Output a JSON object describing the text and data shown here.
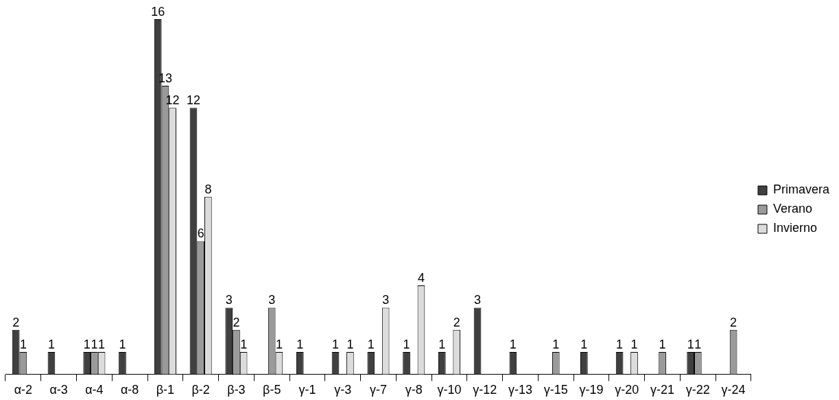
{
  "chart_data": {
    "type": "bar",
    "categories": [
      "α-2",
      "α-3",
      "α-4",
      "α-8",
      "β-1",
      "β-2",
      "β-3",
      "β-5",
      "γ-1",
      "γ-3",
      "γ-7",
      "γ-8",
      "γ-10",
      "γ-12",
      "γ-13",
      "γ-15",
      "γ-19",
      "γ-20",
      "γ-21",
      "γ-22",
      "γ-24"
    ],
    "series": [
      {
        "name": "Primavera",
        "color": "#404040",
        "values": [
          2,
          1,
          1,
          1,
          16,
          12,
          3,
          null,
          1,
          1,
          1,
          1,
          1,
          3,
          1,
          null,
          1,
          1,
          null,
          1,
          null
        ]
      },
      {
        "name": "Verano",
        "color": "#9a9a9a",
        "values": [
          1,
          null,
          1,
          null,
          13,
          6,
          2,
          3,
          null,
          null,
          null,
          null,
          null,
          null,
          null,
          1,
          null,
          null,
          1,
          1,
          2
        ]
      },
      {
        "name": "Invierno",
        "color": "#dcdcdc",
        "values": [
          null,
          null,
          1,
          null,
          12,
          8,
          1,
          1,
          null,
          1,
          3,
          4,
          2,
          null,
          null,
          null,
          null,
          1,
          null,
          null,
          null
        ]
      }
    ],
    "data_labels": true,
    "legend": "right"
  }
}
